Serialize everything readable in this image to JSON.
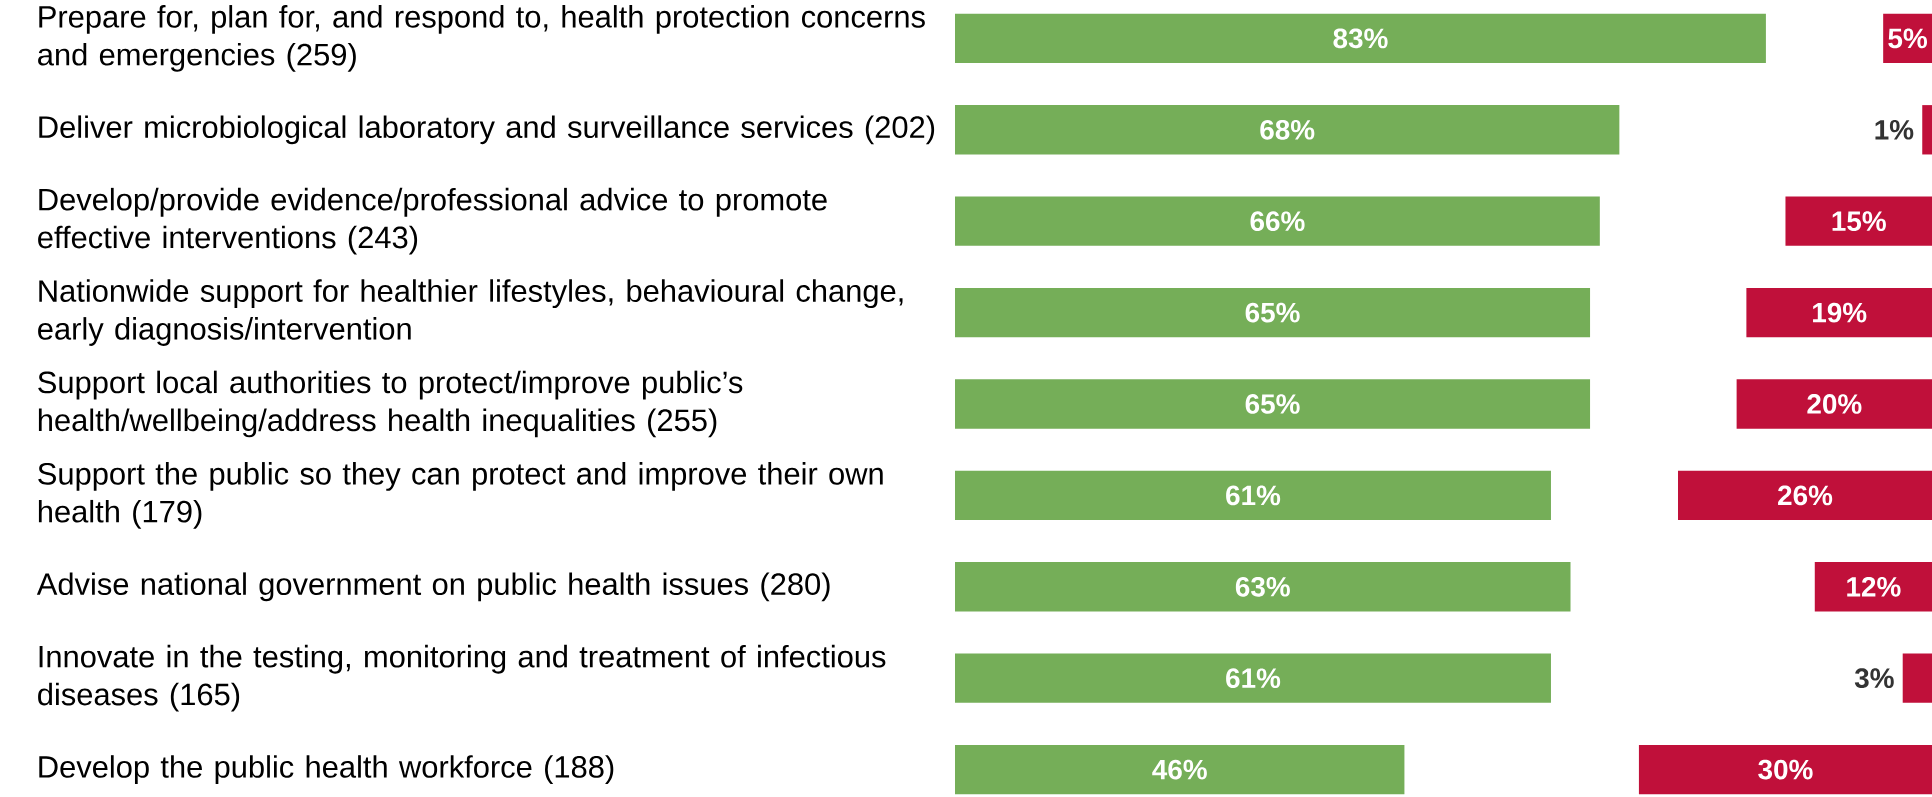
{
  "chart_data": [
    {
      "type": "bar",
      "orientation": "horizontal",
      "tick_labels": "y",
      "categories": [
        "Prepare for, plan for, and respond to, health protection concerns and emergencies (259)",
        "Deliver microbiological laboratory and surveillance services (202)",
        "Develop/provide evidence/professional advice to promote effective interventions (243)",
        "Nationwide support for healthier lifestyles, behavioural change, early diagnosis/intervention",
        "Support local authorities to protect/improve public’s health/wellbeing/address health inequalities (255)",
        "Support the public so they can protect and improve their own health (179)",
        "Advise national government on public health issues (280)",
        "Innovate in the testing, monitoring and treatment of infectious diseases (165)",
        "Develop the public health workforce (188)"
      ],
      "series": [
        {
          "color": "#75ae58",
          "values": [
            83,
            68,
            66,
            65,
            65,
            61,
            63,
            61,
            46
          ],
          "value_labels": [
            "83%",
            "68%",
            "66%",
            "65%",
            "65%",
            "61%",
            "63%",
            "61%",
            "46%"
          ]
        }
      ]
    },
    {
      "type": "bar",
      "orientation": "horizontal",
      "tick_labels": false,
      "categories": [
        null,
        null,
        null,
        null,
        null,
        null,
        null,
        null,
        null
      ],
      "series": [
        {
          "color": "#c0103a",
          "values": [
            5,
            1,
            15,
            19,
            20,
            26,
            12,
            3,
            30
          ],
          "value_labels": [
            "5%",
            "1%",
            "15%",
            "19%",
            "20%",
            "26%",
            "12%",
            "3%",
            "30%"
          ]
        }
      ]
    }
  ]
}
